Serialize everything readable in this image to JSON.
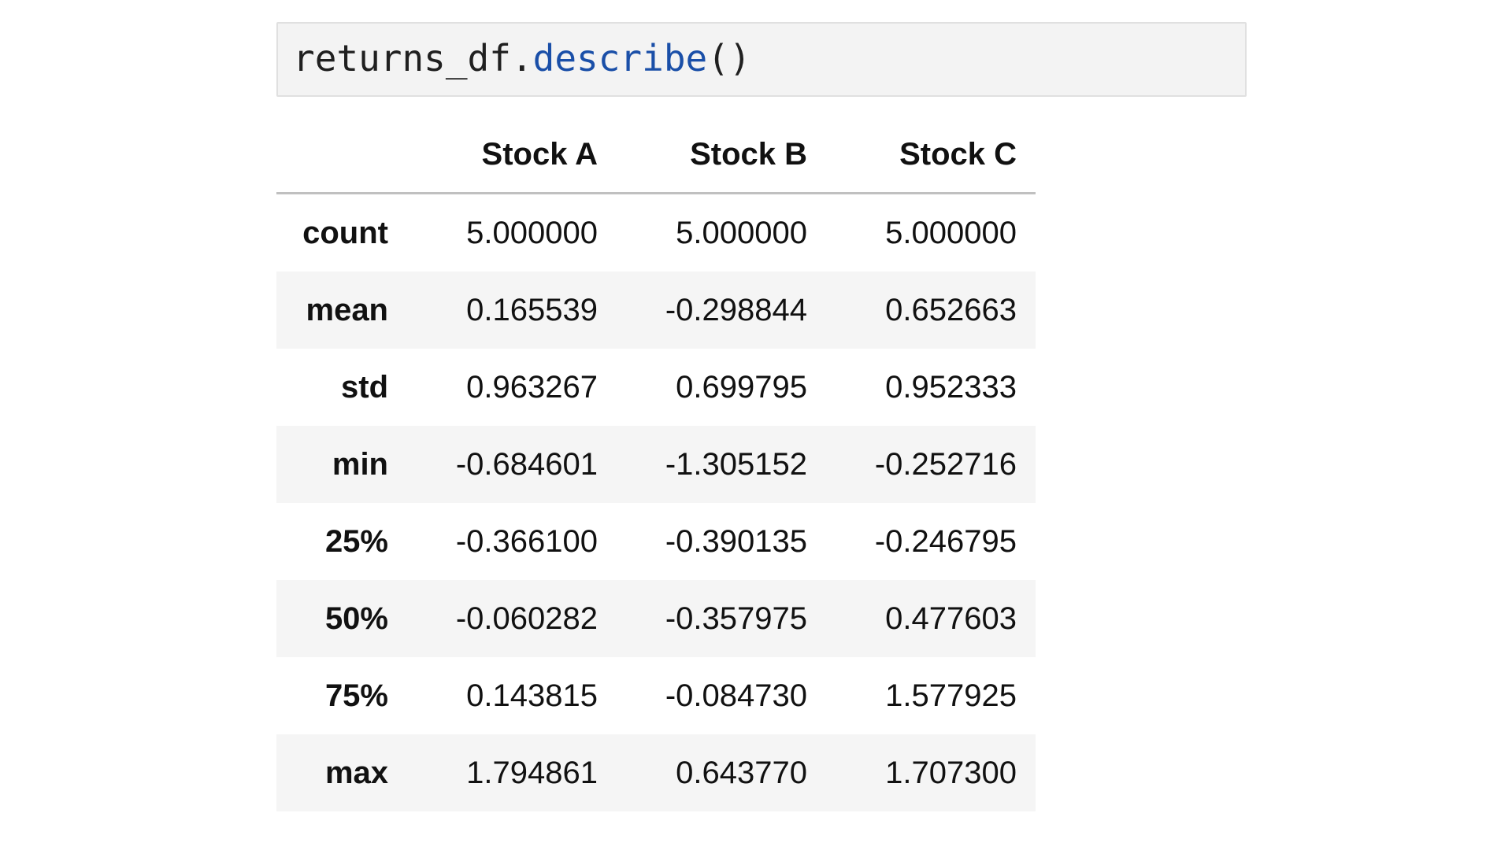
{
  "code_cell": {
    "tokens": {
      "var": "returns_df",
      "dot": ".",
      "attr": "describe",
      "parens": "()"
    }
  },
  "output_table": {
    "columns": [
      "Stock A",
      "Stock B",
      "Stock C"
    ],
    "rows": [
      {
        "label": "count",
        "values": [
          "5.000000",
          "5.000000",
          "5.000000"
        ]
      },
      {
        "label": "mean",
        "values": [
          "0.165539",
          "-0.298844",
          "0.652663"
        ]
      },
      {
        "label": "std",
        "values": [
          "0.963267",
          "0.699795",
          "0.952333"
        ]
      },
      {
        "label": "min",
        "values": [
          "-0.684601",
          "-1.305152",
          "-0.252716"
        ]
      },
      {
        "label": "25%",
        "values": [
          "-0.366100",
          "-0.390135",
          "-0.246795"
        ]
      },
      {
        "label": "50%",
        "values": [
          "-0.060282",
          "-0.357975",
          "0.477603"
        ]
      },
      {
        "label": "75%",
        "values": [
          "0.143815",
          "-0.084730",
          "1.577925"
        ]
      },
      {
        "label": "max",
        "values": [
          "1.794861",
          "0.643770",
          "1.707300"
        ]
      }
    ]
  },
  "colors": {
    "code_background": "#f3f3f3",
    "code_attribute": "#1a4fa8",
    "row_stripe": "#f5f5f5",
    "header_rule": "#c0c0c0"
  }
}
